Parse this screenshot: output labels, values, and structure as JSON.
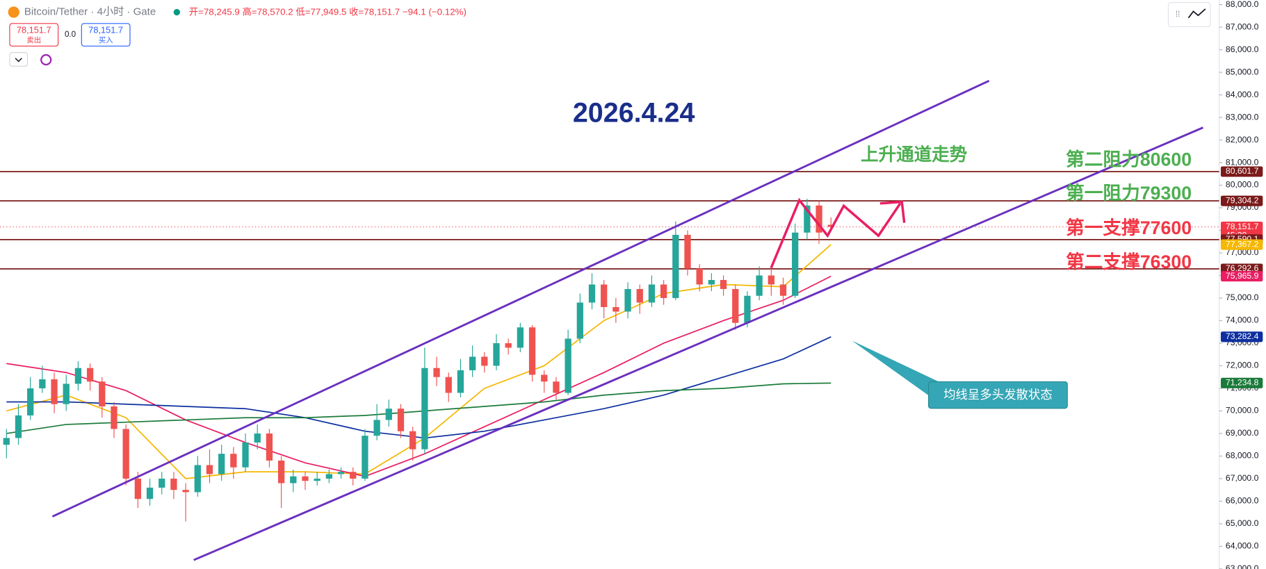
{
  "chart_data": {
    "type": "candlestick",
    "header": {
      "symbol": "Bitcoin/Tether",
      "interval": "· 4小时 ·",
      "exchange": "Gate",
      "ohlc": [
        "开=78,245.9",
        "高=78,570.2",
        "低=77,949.5",
        "收=78,151.7",
        "−94.1 (−0.12%)"
      ]
    },
    "trade": {
      "sell_price": "78,151.7",
      "sell": "卖出",
      "spread": "0.0",
      "buy_price": "78,151.7",
      "buy": "买入"
    },
    "annotations": {
      "date": "2026.4.24",
      "channel": "上升通道走势",
      "r2": "第二阻力80600",
      "r1": "第一阻力79300",
      "s1": "第一支撑77600",
      "s2": "第二支撑76300",
      "callout": "均线呈多头发散状态"
    },
    "up_color": "#26a69a",
    "down_color": "#ef5350",
    "open": [
      68500,
      68800,
      69800,
      71000,
      71400,
      70300,
      71200,
      71900,
      71300,
      70200,
      69200,
      67000,
      66100,
      66600,
      67000,
      66500,
      66400,
      67600,
      67200,
      68100,
      67500,
      68600,
      69000,
      67800,
      66800,
      67100,
      66900,
      67000,
      67200,
      67300,
      67000,
      68900,
      69600,
      70100,
      69100,
      68300,
      71900,
      71500,
      70800,
      71800,
      72400,
      72000,
      73000,
      72800,
      73700,
      71600,
      71300,
      70800,
      73200,
      74800,
      75600,
      74600,
      74400,
      75400,
      74800,
      75600,
      75000,
      77800,
      76300,
      75600,
      75800,
      75400,
      73900,
      75100,
      76000,
      75600,
      75100,
      77900,
      79100,
      78245.9
    ],
    "high": [
      69200,
      70300,
      71500,
      72000,
      71700,
      71600,
      72200,
      72100,
      71500,
      70400,
      69400,
      67300,
      67000,
      67300,
      67300,
      66800,
      68000,
      68300,
      68500,
      68400,
      69000,
      69400,
      69200,
      68000,
      67400,
      67300,
      67300,
      67400,
      67500,
      67500,
      69200,
      70300,
      70500,
      70300,
      69300,
      72800,
      72400,
      71700,
      72300,
      72900,
      72600,
      73400,
      73200,
      73900,
      73800,
      71800,
      71500,
      73600,
      75200,
      76100,
      75800,
      75000,
      75700,
      75600,
      76000,
      75800,
      78400,
      78000,
      76500,
      76100,
      76000,
      75600,
      75300,
      76400,
      76300,
      75900,
      78300,
      79400,
      79300,
      78570.2
    ],
    "low": [
      67900,
      68500,
      69600,
      70800,
      69900,
      70000,
      70900,
      70900,
      69700,
      68800,
      66700,
      65700,
      65800,
      66300,
      66100,
      65100,
      66200,
      66800,
      66900,
      67000,
      67300,
      68300,
      67500,
      65700,
      66400,
      66500,
      66700,
      66800,
      67000,
      66700,
      66900,
      68700,
      69300,
      68800,
      67800,
      68100,
      71100,
      70400,
      70600,
      71500,
      71700,
      71800,
      72500,
      72600,
      71300,
      70800,
      70500,
      70700,
      73000,
      74500,
      74100,
      73900,
      74100,
      74300,
      74600,
      74700,
      74900,
      76000,
      75300,
      75300,
      75100,
      73600,
      73700,
      74900,
      75100,
      74700,
      75000,
      77600,
      77400,
      77949.5
    ],
    "close": [
      68800,
      69800,
      71000,
      71400,
      70300,
      71200,
      71900,
      71300,
      70200,
      69200,
      67000,
      66100,
      66600,
      67000,
      66500,
      66400,
      67600,
      67200,
      68100,
      67500,
      68600,
      69000,
      67800,
      66800,
      67100,
      66900,
      67000,
      67200,
      67300,
      67000,
      68900,
      69600,
      70100,
      69100,
      68300,
      71900,
      71500,
      70800,
      71800,
      72400,
      72000,
      73000,
      72800,
      73700,
      71600,
      71300,
      70800,
      73200,
      74800,
      75600,
      74600,
      74400,
      75400,
      74800,
      75600,
      75000,
      77800,
      76300,
      75600,
      75800,
      75400,
      73900,
      75100,
      76000,
      75600,
      75100,
      77900,
      79100,
      77900,
      78151.7
    ],
    "ma_x": [
      0,
      5,
      10,
      15,
      20,
      25,
      30,
      35,
      40,
      45,
      50,
      55,
      60,
      65,
      69
    ],
    "series": [
      {
        "color": "#f5b700",
        "values": [
          70000,
          70700,
          69700,
          67000,
          67300,
          67300,
          67200,
          68800,
          71000,
          72000,
          74000,
          75200,
          75600,
          75500,
          77367.2
        ]
      },
      {
        "color": "#e91e63",
        "values": [
          72100,
          71700,
          70900,
          69600,
          68600,
          67700,
          67100,
          68100,
          69300,
          70500,
          71700,
          73000,
          74000,
          74900,
          75965.9
        ]
      },
      {
        "color": "#0d2fa0",
        "values": [
          70400,
          70400,
          70300,
          70200,
          70100,
          69700,
          69100,
          68800,
          69100,
          69600,
          70100,
          70700,
          71500,
          72300,
          73282.4
        ]
      },
      {
        "color": "#1b7a3a",
        "values": [
          69000,
          69400,
          69500,
          69600,
          69700,
          69700,
          69800,
          70000,
          70200,
          70400,
          70700,
          70900,
          71000,
          71200,
          71234.8
        ]
      }
    ],
    "ylim": [
      63000,
      88200
    ],
    "yticks": [
      {
        "value": 88000,
        "label": "88,000.0"
      },
      {
        "value": 87000,
        "label": "87,000.0"
      },
      {
        "value": 86000,
        "label": "86,000.0"
      },
      {
        "value": 85000,
        "label": "85,000.0"
      },
      {
        "value": 84000,
        "label": "84,000.0"
      },
      {
        "value": 83000,
        "label": "83,000.0"
      },
      {
        "value": 82000,
        "label": "82,000.0"
      },
      {
        "value": 81000,
        "label": "81,000.0"
      },
      {
        "value": 80000,
        "label": "80,000.0"
      },
      {
        "value": 79000,
        "label": "79,000.0"
      },
      {
        "value": 78000,
        "label": "78,000.0"
      },
      {
        "value": 77000,
        "label": "77,000.0"
      },
      {
        "value": 76000,
        "label": "76,000.0"
      },
      {
        "value": 75000,
        "label": "75,000.0"
      },
      {
        "value": 74000,
        "label": "74,000.0"
      },
      {
        "value": 73000,
        "label": "73,000.0"
      },
      {
        "value": 72000,
        "label": "72,000.0"
      },
      {
        "value": 71000,
        "label": "71,000.0"
      },
      {
        "value": 70000,
        "label": "70,000.0"
      },
      {
        "value": 69000,
        "label": "69,000.0"
      },
      {
        "value": 68000,
        "label": "68,000.0"
      },
      {
        "value": 67000,
        "label": "67,000.0"
      },
      {
        "value": 66000,
        "label": "66,000.0"
      },
      {
        "value": 65000,
        "label": "65,000.0"
      },
      {
        "value": 64000,
        "label": "64,000.0"
      },
      {
        "value": 63000,
        "label": "63,000.0"
      }
    ],
    "price_tags": [
      {
        "value": 80601.7,
        "label": "80,601.7",
        "color": "#7b1a1a",
        "line": true
      },
      {
        "value": 79304.2,
        "label": "79,304.2",
        "color": "#7b1a1a",
        "line": true
      },
      {
        "value": 78151.7,
        "label": "78,151.7",
        "color": "#f23645",
        "countdown": "45:39"
      },
      {
        "value": 77590.1,
        "label": "77,590.1",
        "color": "#7b1a1a",
        "line": true
      },
      {
        "value": 77367.2,
        "label": "77,367.2",
        "color": "#f5b700"
      },
      {
        "value": 76292.6,
        "label": "76,292.6",
        "color": "#7b1a1a",
        "line": true
      },
      {
        "value": 75965.9,
        "label": "75,965.9",
        "color": "#e91e63"
      },
      {
        "value": 73282.4,
        "label": "73,282.4",
        "color": "#0d2fa0"
      },
      {
        "value": 71234.8,
        "label": "71,234.8",
        "color": "#1b7a3a"
      }
    ]
  }
}
